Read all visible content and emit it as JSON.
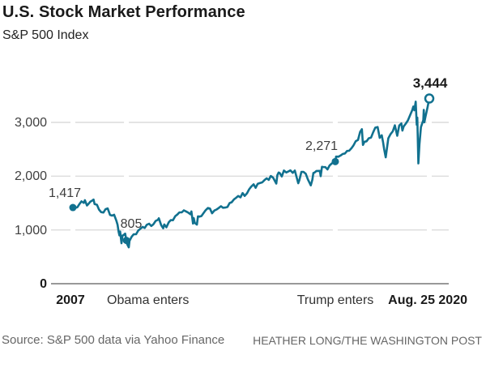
{
  "header": {
    "title": "U.S. Stock Market Performance",
    "subtitle": "S&P 500 Index"
  },
  "footer": {
    "source": "Source: S&P 500 data via Yahoo Finance",
    "byline": "HEATHER LONG/THE WASHINGTON POST"
  },
  "chart_data": {
    "type": "line",
    "title": "U.S. Stock Market Performance",
    "subtitle": "S&P 500 Index",
    "ylabel": "S&P 500 Index",
    "ylim": [
      0,
      3600
    ],
    "yticks": [
      0,
      1000,
      2000,
      3000
    ],
    "ytick_labels": [
      "0",
      "1,000",
      "2,000",
      "3,000"
    ],
    "xlim": [
      2007.0,
      2020.65
    ],
    "grid": "horizontal",
    "legend": "none",
    "line_color": "#11718f",
    "grid_color": "#dcdcdc",
    "axis_color": "#999999",
    "xticks": [
      {
        "t": 2007.0,
        "label": "2007",
        "bold": true
      },
      {
        "t": 2009.05,
        "label": "Obama enters",
        "bold": false
      },
      {
        "t": 2017.05,
        "label": "Trump enters",
        "bold": false
      },
      {
        "t": 2020.65,
        "label": "Aug. 25 2020",
        "bold": true
      }
    ],
    "annotations": [
      {
        "t": 2007.0,
        "v": 1417,
        "label": "1,417",
        "marker": "filled",
        "bold": false
      },
      {
        "t": 2009.05,
        "v": 805,
        "label": "805",
        "marker": "filled",
        "bold": false
      },
      {
        "t": 2017.05,
        "v": 2271,
        "label": "2,271",
        "marker": "filled",
        "bold": false
      },
      {
        "t": 2020.65,
        "v": 3444,
        "label": "3,444",
        "marker": "open",
        "bold": true
      }
    ],
    "series": [
      {
        "name": "S&P 500 Index",
        "points": [
          [
            2007.0,
            1417
          ],
          [
            2007.08,
            1407
          ],
          [
            2007.17,
            1421
          ],
          [
            2007.25,
            1482
          ],
          [
            2007.33,
            1531
          ],
          [
            2007.42,
            1503
          ],
          [
            2007.46,
            1553
          ],
          [
            2007.54,
            1455
          ],
          [
            2007.58,
            1474
          ],
          [
            2007.67,
            1527
          ],
          [
            2007.75,
            1549
          ],
          [
            2007.79,
            1565
          ],
          [
            2007.83,
            1481
          ],
          [
            2007.92,
            1468
          ],
          [
            2008.0,
            1379
          ],
          [
            2008.08,
            1331
          ],
          [
            2008.17,
            1323
          ],
          [
            2008.25,
            1386
          ],
          [
            2008.33,
            1400
          ],
          [
            2008.42,
            1280
          ],
          [
            2008.5,
            1267
          ],
          [
            2008.58,
            1283
          ],
          [
            2008.67,
            1166
          ],
          [
            2008.71,
            1099
          ],
          [
            2008.75,
            969
          ],
          [
            2008.78,
            899
          ],
          [
            2008.81,
            969
          ],
          [
            2008.86,
            752
          ],
          [
            2008.9,
            896
          ],
          [
            2008.94,
            903
          ],
          [
            2009.0,
            932
          ],
          [
            2009.05,
            805
          ],
          [
            2009.08,
            735
          ],
          [
            2009.14,
            677
          ],
          [
            2009.17,
            798
          ],
          [
            2009.25,
            873
          ],
          [
            2009.33,
            919
          ],
          [
            2009.42,
            919
          ],
          [
            2009.5,
            987
          ],
          [
            2009.58,
            1021
          ],
          [
            2009.67,
            1057
          ],
          [
            2009.75,
            1036
          ],
          [
            2009.83,
            1096
          ],
          [
            2009.92,
            1115
          ],
          [
            2010.0,
            1074
          ],
          [
            2010.08,
            1104
          ],
          [
            2010.17,
            1169
          ],
          [
            2010.25,
            1187
          ],
          [
            2010.29,
            1217
          ],
          [
            2010.38,
            1089
          ],
          [
            2010.46,
            1031
          ],
          [
            2010.5,
            1102
          ],
          [
            2010.58,
            1049
          ],
          [
            2010.67,
            1141
          ],
          [
            2010.75,
            1183
          ],
          [
            2010.83,
            1181
          ],
          [
            2010.92,
            1258
          ],
          [
            2011.0,
            1286
          ],
          [
            2011.08,
            1327
          ],
          [
            2011.17,
            1326
          ],
          [
            2011.25,
            1364
          ],
          [
            2011.33,
            1345
          ],
          [
            2011.42,
            1321
          ],
          [
            2011.5,
            1292
          ],
          [
            2011.54,
            1345
          ],
          [
            2011.6,
            1119
          ],
          [
            2011.63,
            1219
          ],
          [
            2011.67,
            1131
          ],
          [
            2011.75,
            1099
          ],
          [
            2011.79,
            1253
          ],
          [
            2011.83,
            1247
          ],
          [
            2011.92,
            1258
          ],
          [
            2012.0,
            1312
          ],
          [
            2012.08,
            1366
          ],
          [
            2012.17,
            1408
          ],
          [
            2012.25,
            1398
          ],
          [
            2012.33,
            1310
          ],
          [
            2012.42,
            1362
          ],
          [
            2012.5,
            1379
          ],
          [
            2012.58,
            1407
          ],
          [
            2012.67,
            1441
          ],
          [
            2012.75,
            1412
          ],
          [
            2012.83,
            1416
          ],
          [
            2012.92,
            1426
          ],
          [
            2013.0,
            1498
          ],
          [
            2013.08,
            1515
          ],
          [
            2013.17,
            1569
          ],
          [
            2013.25,
            1598
          ],
          [
            2013.33,
            1631
          ],
          [
            2013.42,
            1606
          ],
          [
            2013.5,
            1686
          ],
          [
            2013.58,
            1633
          ],
          [
            2013.67,
            1682
          ],
          [
            2013.75,
            1757
          ],
          [
            2013.83,
            1806
          ],
          [
            2013.92,
            1848
          ],
          [
            2014.0,
            1783
          ],
          [
            2014.08,
            1859
          ],
          [
            2014.17,
            1872
          ],
          [
            2014.25,
            1884
          ],
          [
            2014.33,
            1924
          ],
          [
            2014.42,
            1960
          ],
          [
            2014.5,
            1931
          ],
          [
            2014.58,
            2003
          ],
          [
            2014.67,
            1972
          ],
          [
            2014.79,
            1862
          ],
          [
            2014.83,
            2018
          ],
          [
            2014.88,
            2068
          ],
          [
            2014.92,
            2059
          ],
          [
            2015.0,
            1995
          ],
          [
            2015.08,
            2105
          ],
          [
            2015.17,
            2068
          ],
          [
            2015.25,
            2086
          ],
          [
            2015.33,
            2107
          ],
          [
            2015.42,
            2063
          ],
          [
            2015.5,
            2104
          ],
          [
            2015.63,
            1868
          ],
          [
            2015.67,
            1920
          ],
          [
            2015.75,
            2079
          ],
          [
            2015.83,
            2080
          ],
          [
            2015.92,
            2044
          ],
          [
            2016.0,
            1940
          ],
          [
            2016.11,
            1829
          ],
          [
            2016.17,
            1932
          ],
          [
            2016.21,
            2060
          ],
          [
            2016.25,
            2065
          ],
          [
            2016.33,
            2097
          ],
          [
            2016.46,
            2099
          ],
          [
            2016.49,
            2001
          ],
          [
            2016.54,
            2174
          ],
          [
            2016.58,
            2171
          ],
          [
            2016.67,
            2168
          ],
          [
            2016.75,
            2126
          ],
          [
            2016.83,
            2199
          ],
          [
            2016.92,
            2239
          ],
          [
            2017.0,
            2268
          ],
          [
            2017.05,
            2271
          ],
          [
            2017.08,
            2364
          ],
          [
            2017.17,
            2363
          ],
          [
            2017.25,
            2384
          ],
          [
            2017.33,
            2412
          ],
          [
            2017.42,
            2423
          ],
          [
            2017.5,
            2470
          ],
          [
            2017.58,
            2472
          ],
          [
            2017.67,
            2519
          ],
          [
            2017.75,
            2575
          ],
          [
            2017.83,
            2648
          ],
          [
            2017.92,
            2674
          ],
          [
            2018.0,
            2824
          ],
          [
            2018.07,
            2873
          ],
          [
            2018.11,
            2581
          ],
          [
            2018.17,
            2641
          ],
          [
            2018.25,
            2648
          ],
          [
            2018.33,
            2705
          ],
          [
            2018.42,
            2718
          ],
          [
            2018.5,
            2816
          ],
          [
            2018.58,
            2902
          ],
          [
            2018.67,
            2914
          ],
          [
            2018.75,
            2712
          ],
          [
            2018.83,
            2760
          ],
          [
            2018.88,
            2633
          ],
          [
            2018.92,
            2507
          ],
          [
            2018.98,
            2351
          ],
          [
            2019.08,
            2704
          ],
          [
            2019.17,
            2784
          ],
          [
            2019.25,
            2834
          ],
          [
            2019.33,
            2946
          ],
          [
            2019.42,
            2752
          ],
          [
            2019.5,
            2942
          ],
          [
            2019.58,
            2980
          ],
          [
            2019.62,
            2847
          ],
          [
            2019.67,
            2926
          ],
          [
            2019.75,
            2977
          ],
          [
            2019.83,
            3038
          ],
          [
            2019.92,
            3141
          ],
          [
            2020.0,
            3231
          ],
          [
            2020.04,
            3295
          ],
          [
            2020.08,
            3226
          ],
          [
            2020.13,
            3386
          ],
          [
            2020.17,
            2954
          ],
          [
            2020.19,
            3090
          ],
          [
            2020.23,
            2237
          ],
          [
            2020.27,
            2585
          ],
          [
            2020.33,
            2912
          ],
          [
            2020.42,
            3044
          ],
          [
            2020.44,
            3232
          ],
          [
            2020.46,
            3002
          ],
          [
            2020.5,
            3100
          ],
          [
            2020.58,
            3271
          ],
          [
            2020.65,
            3444
          ]
        ]
      }
    ]
  }
}
